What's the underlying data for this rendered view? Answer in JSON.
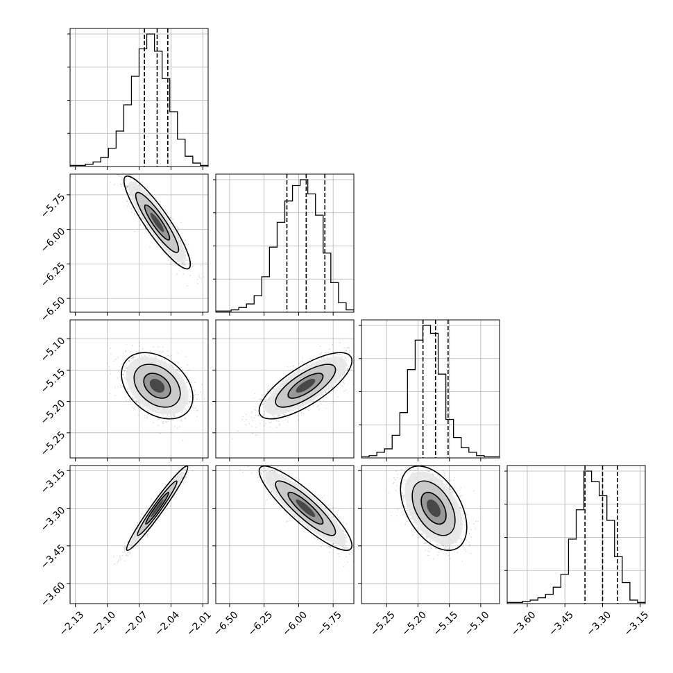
{
  "chart_data": {
    "type": "corner",
    "grid": true,
    "ylabel_note": "",
    "params": [
      {
        "index": 0,
        "range": [
          -2.135,
          -2.005
        ],
        "ticks": [
          -2.13,
          -2.1,
          -2.07,
          -2.04,
          -2.01
        ],
        "tick_labels": [
          "−2.13",
          "−2.10",
          "−2.07",
          "−2.04",
          "−2.01"
        ],
        "quantiles": [
          -2.065,
          -2.053,
          -2.043
        ]
      },
      {
        "index": 1,
        "range": [
          -6.6,
          -5.6
        ],
        "ticks": [
          -6.5,
          -6.25,
          -6.0,
          -5.75
        ],
        "tick_labels": [
          "−6.50",
          "−6.25",
          "−6.00",
          "−5.75"
        ],
        "quantiles": [
          -6.085,
          -5.945,
          -5.81
        ]
      },
      {
        "index": 2,
        "range": [
          -5.29,
          -5.07
        ],
        "ticks": [
          -5.25,
          -5.2,
          -5.15,
          -5.1
        ],
        "tick_labels": [
          "−5.25",
          "−5.20",
          "−5.15",
          "−5.10"
        ],
        "quantiles": [
          -5.192,
          -5.172,
          -5.152
        ]
      },
      {
        "index": 3,
        "range": [
          -3.68,
          -3.13
        ],
        "ticks": [
          -3.6,
          -3.45,
          -3.3,
          -3.15
        ],
        "tick_labels": [
          "−3.60",
          "−3.45",
          "−3.30",
          "−3.15"
        ],
        "quantiles": [
          -3.37,
          -3.3,
          -3.24
        ]
      }
    ],
    "histograms": [
      [
        1,
        1,
        2,
        4,
        8,
        16,
        31,
        54,
        79,
        103,
        116,
        101,
        77,
        48,
        24,
        9,
        3,
        1
      ],
      [
        1,
        1,
        2,
        4,
        7,
        14,
        30,
        55,
        76,
        94,
        107,
        112,
        100,
        82,
        50,
        25,
        8,
        2
      ],
      [
        1,
        2,
        5,
        8,
        20,
        40,
        78,
        104,
        117,
        110,
        74,
        34,
        18,
        9,
        5,
        2,
        1,
        1
      ],
      [
        1,
        1,
        2,
        3,
        5,
        8,
        14,
        25,
        55,
        80,
        113,
        104,
        92,
        71,
        40,
        18,
        3,
        1
      ]
    ],
    "pairs": [
      {
        "x": 0,
        "y": 1,
        "mean": [
          -2.053,
          -5.95
        ],
        "sd": [
          0.013,
          0.14
        ],
        "corr": -0.9
      },
      {
        "x": 0,
        "y": 2,
        "mean": [
          -2.053,
          -5.175
        ],
        "sd": [
          0.014,
          0.022
        ],
        "corr": -0.35
      },
      {
        "x": 1,
        "y": 2,
        "mean": [
          -5.95,
          -5.175
        ],
        "sd": [
          0.14,
          0.022
        ],
        "corr": 0.75
      },
      {
        "x": 0,
        "y": 3,
        "mean": [
          -2.053,
          -3.3
        ],
        "sd": [
          0.012,
          0.07
        ],
        "corr": 0.97
      },
      {
        "x": 1,
        "y": 3,
        "mean": [
          -5.95,
          -3.3
        ],
        "sd": [
          0.14,
          0.07
        ],
        "corr": -0.88
      },
      {
        "x": 2,
        "y": 3,
        "mean": [
          -5.175,
          -3.3
        ],
        "sd": [
          0.022,
          0.07
        ],
        "corr": -0.45
      }
    ]
  }
}
